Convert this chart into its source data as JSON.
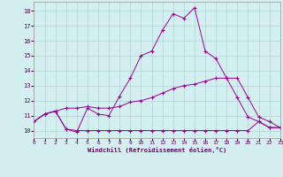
{
  "xlabel": "Windchill (Refroidissement éolien,°C)",
  "bg_color": "#d4efef",
  "line_color": "#990099",
  "grid_color": "#b0d4d4",
  "xlim": [
    0,
    23
  ],
  "ylim": [
    9.5,
    18.6
  ],
  "xticks": [
    0,
    1,
    2,
    3,
    4,
    5,
    6,
    7,
    8,
    9,
    10,
    11,
    12,
    13,
    14,
    15,
    16,
    17,
    18,
    19,
    20,
    21,
    22,
    23
  ],
  "yticks": [
    10,
    11,
    12,
    13,
    14,
    15,
    16,
    17,
    18
  ],
  "line1_y": [
    10.6,
    11.1,
    11.3,
    10.1,
    9.9,
    11.5,
    11.1,
    11.0,
    12.3,
    13.5,
    15.0,
    15.3,
    16.7,
    17.8,
    17.5,
    18.2,
    15.3,
    14.8,
    13.5,
    12.2,
    10.9,
    10.6,
    10.2,
    10.2
  ],
  "line2_y": [
    10.6,
    11.1,
    11.3,
    11.5,
    11.5,
    11.6,
    11.5,
    11.5,
    11.6,
    11.9,
    12.0,
    12.2,
    12.5,
    12.8,
    13.0,
    13.1,
    13.3,
    13.5,
    13.5,
    13.5,
    12.2,
    10.9,
    10.6,
    10.2
  ],
  "line3_y": [
    10.6,
    11.1,
    11.3,
    10.1,
    10.0,
    10.0,
    10.0,
    10.0,
    10.0,
    10.0,
    10.0,
    10.0,
    10.0,
    10.0,
    10.0,
    10.0,
    10.0,
    10.0,
    10.0,
    10.0,
    10.0,
    10.6,
    10.2,
    10.2
  ]
}
